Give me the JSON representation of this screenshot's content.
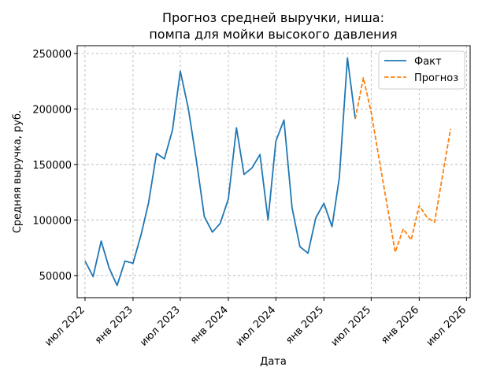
{
  "chart_data": {
    "type": "line",
    "title": [
      "Прогноз средней выручки, ниша:",
      "помпа для мойки высокого давления"
    ],
    "xlabel": "Дата",
    "ylabel": "Средняя выручка, руб.",
    "ylim": [
      30000,
      257000
    ],
    "xlim": [
      "2022-06-01",
      "2026-07-15"
    ],
    "grid": true,
    "legend_position": "top-right",
    "y_ticks": [
      50000,
      100000,
      150000,
      200000,
      250000
    ],
    "x_ticks": [
      {
        "date": "2022-07-01",
        "label": "июл 2022"
      },
      {
        "date": "2023-01-01",
        "label": "янв 2023"
      },
      {
        "date": "2023-07-01",
        "label": "июл 2023"
      },
      {
        "date": "2024-01-01",
        "label": "янв 2024"
      },
      {
        "date": "2024-07-01",
        "label": "июл 2024"
      },
      {
        "date": "2025-01-01",
        "label": "янв 2025"
      },
      {
        "date": "2025-07-01",
        "label": "июл 2025"
      },
      {
        "date": "2026-01-01",
        "label": "янв 2026"
      },
      {
        "date": "2026-07-01",
        "label": "июл 2026"
      }
    ],
    "series": [
      {
        "name": "Факт",
        "color": "#1f77b4",
        "style": "solid",
        "points": [
          [
            "2022-07-01",
            63000
          ],
          [
            "2022-08-01",
            49000
          ],
          [
            "2022-09-01",
            81000
          ],
          [
            "2022-10-01",
            57000
          ],
          [
            "2022-11-01",
            41000
          ],
          [
            "2022-12-01",
            63000
          ],
          [
            "2023-01-01",
            61000
          ],
          [
            "2023-02-01",
            87000
          ],
          [
            "2023-03-01",
            115000
          ],
          [
            "2023-04-01",
            160000
          ],
          [
            "2023-05-01",
            155000
          ],
          [
            "2023-06-01",
            181000
          ],
          [
            "2023-07-01",
            234000
          ],
          [
            "2023-08-01",
            200000
          ],
          [
            "2023-09-01",
            153000
          ],
          [
            "2023-10-01",
            103000
          ],
          [
            "2023-11-01",
            89000
          ],
          [
            "2023-12-01",
            97000
          ],
          [
            "2024-01-01",
            119000
          ],
          [
            "2024-02-01",
            183000
          ],
          [
            "2024-03-01",
            141000
          ],
          [
            "2024-04-01",
            147000
          ],
          [
            "2024-05-01",
            159000
          ],
          [
            "2024-06-01",
            100000
          ],
          [
            "2024-07-01",
            171000
          ],
          [
            "2024-08-01",
            190000
          ],
          [
            "2024-09-01",
            111000
          ],
          [
            "2024-10-01",
            76000
          ],
          [
            "2024-11-01",
            70000
          ],
          [
            "2024-12-01",
            102000
          ],
          [
            "2025-01-01",
            115000
          ],
          [
            "2025-02-01",
            94000
          ],
          [
            "2025-03-01",
            138000
          ],
          [
            "2025-04-01",
            246000
          ],
          [
            "2025-05-01",
            191000
          ]
        ]
      },
      {
        "name": "Прогноз",
        "color": "#ff7f0e",
        "style": "dashed",
        "points": [
          [
            "2025-05-01",
            191000
          ],
          [
            "2025-06-01",
            228000
          ],
          [
            "2025-07-01",
            197000
          ],
          [
            "2025-08-01",
            154000
          ],
          [
            "2025-09-01",
            112000
          ],
          [
            "2025-10-01",
            71000
          ],
          [
            "2025-11-01",
            92000
          ],
          [
            "2025-12-01",
            82000
          ],
          [
            "2026-01-01",
            113000
          ],
          [
            "2026-02-01",
            102000
          ],
          [
            "2026-03-01",
            98000
          ],
          [
            "2026-04-01",
            141000
          ],
          [
            "2026-05-01",
            182000
          ]
        ]
      }
    ]
  }
}
